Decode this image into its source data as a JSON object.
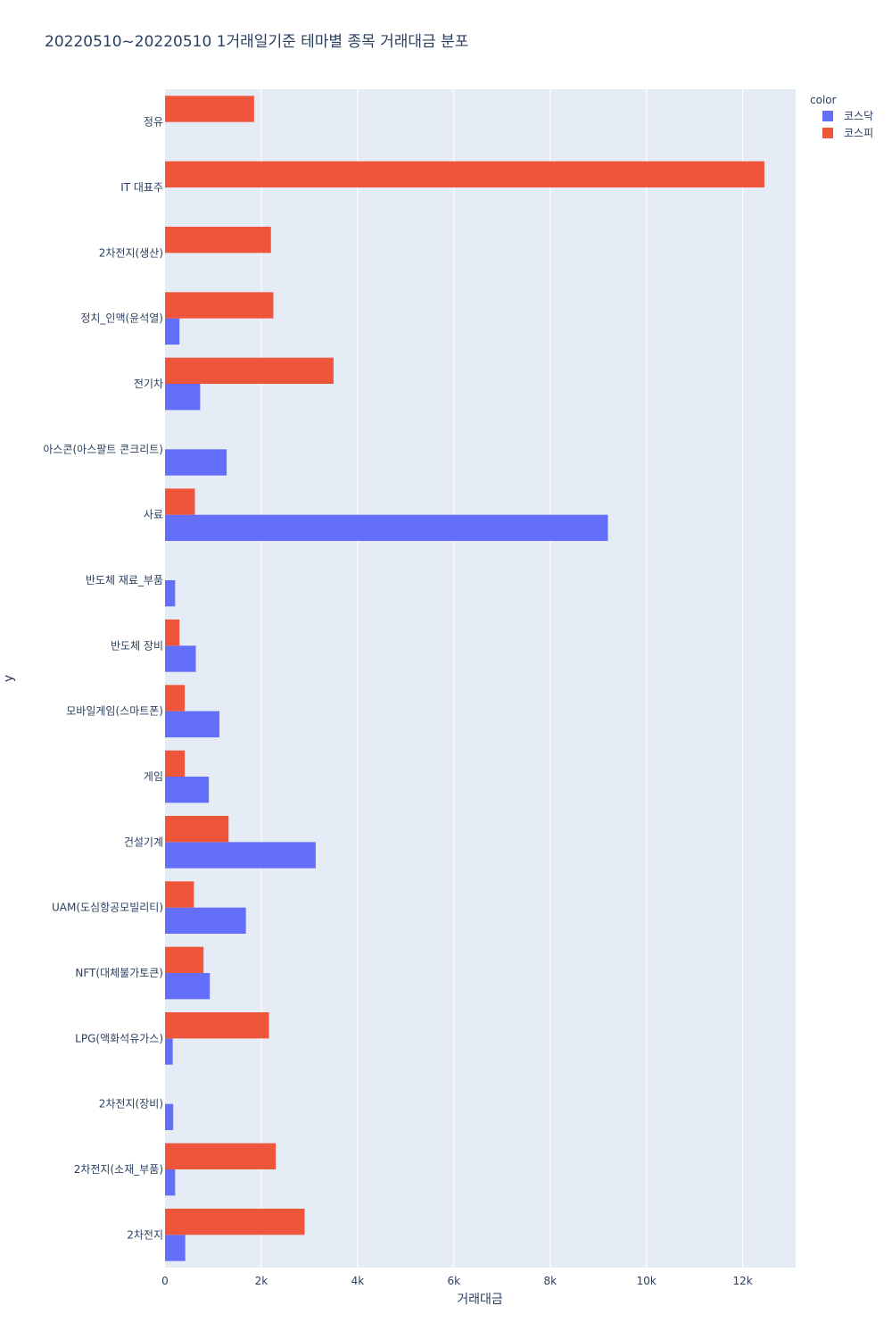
{
  "chart_data": {
    "type": "bar",
    "orientation": "horizontal",
    "title": "20220510~20220510 1거래일기준 테마별 종목 거래대금 분포",
    "xlabel": "거래대금",
    "ylabel": "y",
    "xlim": [
      0,
      13100
    ],
    "x_ticks": [
      {
        "value": 0,
        "label": "0"
      },
      {
        "value": 2000,
        "label": "2k"
      },
      {
        "value": 4000,
        "label": "4k"
      },
      {
        "value": 6000,
        "label": "6k"
      },
      {
        "value": 8000,
        "label": "8k"
      },
      {
        "value": 10000,
        "label": "10k"
      },
      {
        "value": 12000,
        "label": "12k"
      }
    ],
    "categories": [
      "정유",
      "IT 대표주",
      "2차전지(생산)",
      "정치_인맥(윤석열)",
      "전기차",
      "아스콘(아스팔트 콘크리트)",
      "사료",
      "반도체 재료_부품",
      "반도체 장비",
      "모바일게임(스마트폰)",
      "게임",
      "건설기계",
      "UAM(도심항공모빌리티)",
      "NFT(대체불가토큰)",
      "LPG(액화석유가스)",
      "2차전지(장비)",
      "2차전지(소재_부품)",
      "2차전지"
    ],
    "legend_title": "color",
    "legend_position": "top-right",
    "grid": true,
    "series": [
      {
        "name": "코스닥",
        "color": "#636efa",
        "values": [
          0,
          0,
          0,
          300,
          730,
          1280,
          9200,
          210,
          640,
          1130,
          910,
          3130,
          1680,
          930,
          160,
          170,
          210,
          420
        ]
      },
      {
        "name": "코스피",
        "color": "#ef553b",
        "values": [
          1850,
          12450,
          2200,
          2250,
          3500,
          0,
          620,
          0,
          300,
          410,
          410,
          1320,
          600,
          800,
          2160,
          0,
          2300,
          2900
        ]
      }
    ]
  }
}
